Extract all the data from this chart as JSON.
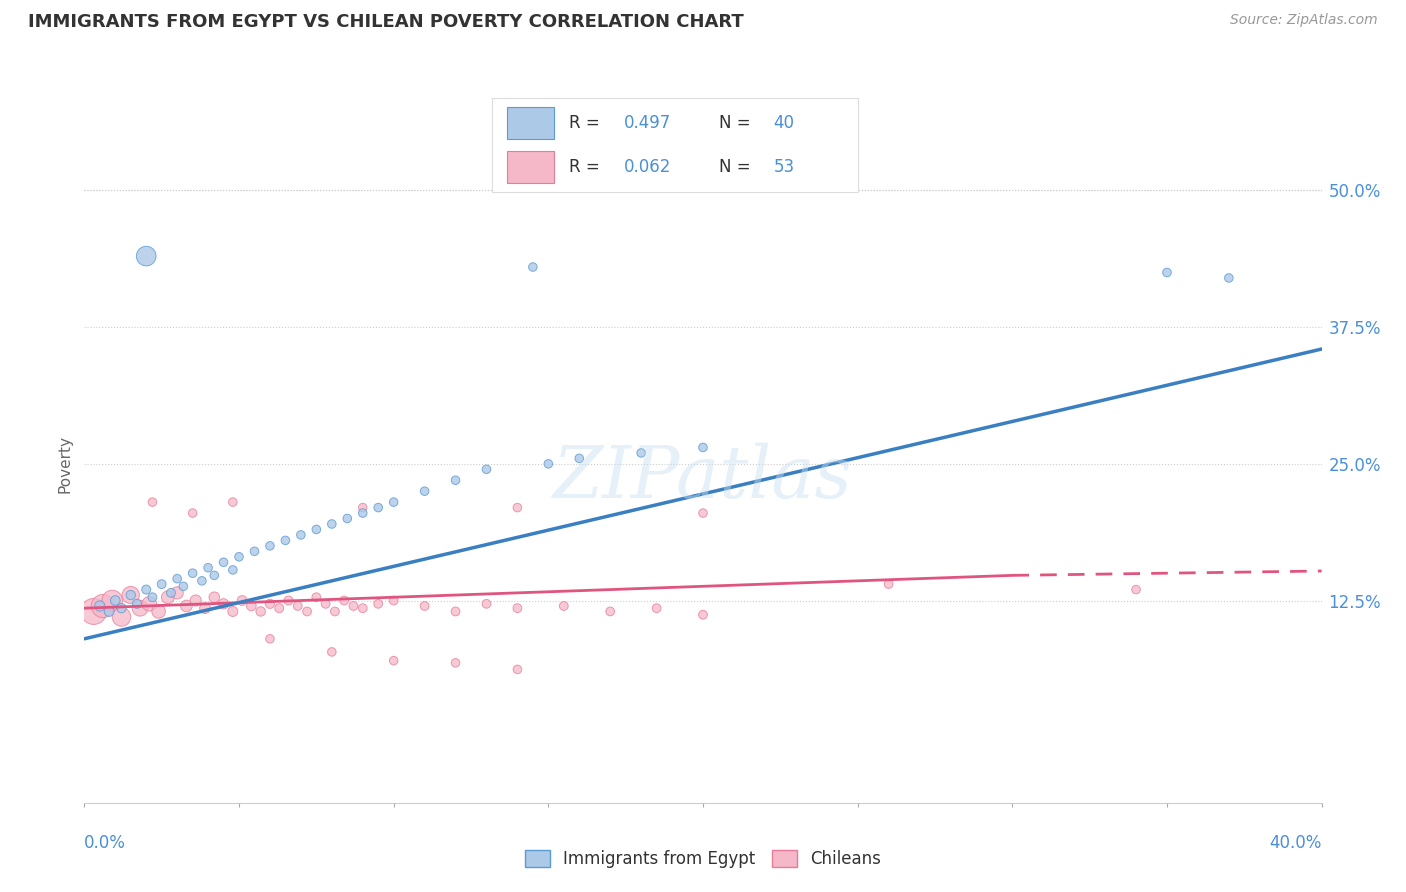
{
  "title": "IMMIGRANTS FROM EGYPT VS CHILEAN POVERTY CORRELATION CHART",
  "source": "Source: ZipAtlas.com",
  "ylabel": "Poverty",
  "ytick_labels": [
    "50.0%",
    "37.5%",
    "25.0%",
    "12.5%"
  ],
  "ytick_vals": [
    0.5,
    0.375,
    0.25,
    0.125
  ],
  "xlim": [
    0.0,
    0.4
  ],
  "ylim": [
    -0.06,
    0.56
  ],
  "blue_color": "#adc9e8",
  "pink_color": "#f4b8c8",
  "blue_edge_color": "#5b9bd5",
  "pink_edge_color": "#e87a9a",
  "blue_line_color": "#3a7fc1",
  "pink_line_color": "#e05580",
  "axis_color": "#4a90d9",
  "title_color": "#333333",
  "source_color": "#999999",
  "watermark": "ZIPatlas",
  "legend_r1": "R = 0.497",
  "legend_n1": "N = 40",
  "legend_r2": "R = 0.062",
  "legend_n2": "N = 53",
  "blue_line": [
    [
      0.0,
      0.09
    ],
    [
      0.4,
      0.355
    ]
  ],
  "pink_line_solid": [
    [
      0.0,
      0.118
    ],
    [
      0.3,
      0.148
    ]
  ],
  "pink_line_dash": [
    [
      0.3,
      0.148
    ],
    [
      0.4,
      0.152
    ]
  ],
  "blue_x": [
    0.005,
    0.008,
    0.01,
    0.012,
    0.015,
    0.017,
    0.02,
    0.022,
    0.025,
    0.028,
    0.03,
    0.032,
    0.035,
    0.038,
    0.04,
    0.042,
    0.045,
    0.048,
    0.05,
    0.055,
    0.06,
    0.065,
    0.07,
    0.075,
    0.08,
    0.085,
    0.09,
    0.095,
    0.1,
    0.11,
    0.12,
    0.13,
    0.15,
    0.16,
    0.18,
    0.2,
    0.35,
    0.37,
    0.145,
    0.02
  ],
  "blue_y": [
    0.12,
    0.115,
    0.125,
    0.118,
    0.13,
    0.122,
    0.135,
    0.128,
    0.14,
    0.132,
    0.145,
    0.138,
    0.15,
    0.143,
    0.155,
    0.148,
    0.16,
    0.153,
    0.165,
    0.17,
    0.175,
    0.18,
    0.185,
    0.19,
    0.195,
    0.2,
    0.205,
    0.21,
    0.215,
    0.225,
    0.235,
    0.245,
    0.25,
    0.255,
    0.26,
    0.265,
    0.425,
    0.42,
    0.43,
    0.44
  ],
  "blue_s": [
    55,
    50,
    48,
    45,
    45,
    42,
    42,
    40,
    40,
    40,
    38,
    38,
    38,
    38,
    38,
    38,
    38,
    38,
    38,
    38,
    38,
    38,
    38,
    38,
    38,
    38,
    38,
    38,
    38,
    38,
    38,
    38,
    38,
    38,
    38,
    38,
    38,
    38,
    38,
    200
  ],
  "pink_x": [
    0.003,
    0.006,
    0.009,
    0.012,
    0.015,
    0.018,
    0.021,
    0.024,
    0.027,
    0.03,
    0.033,
    0.036,
    0.039,
    0.042,
    0.045,
    0.048,
    0.051,
    0.054,
    0.057,
    0.06,
    0.063,
    0.066,
    0.069,
    0.072,
    0.075,
    0.078,
    0.081,
    0.084,
    0.087,
    0.09,
    0.095,
    0.1,
    0.11,
    0.12,
    0.13,
    0.14,
    0.155,
    0.17,
    0.185,
    0.2,
    0.022,
    0.035,
    0.048,
    0.09,
    0.14,
    0.26,
    0.34,
    0.2,
    0.06,
    0.08,
    0.1,
    0.12,
    0.14
  ],
  "pink_y": [
    0.115,
    0.12,
    0.125,
    0.11,
    0.13,
    0.118,
    0.122,
    0.115,
    0.128,
    0.132,
    0.12,
    0.125,
    0.118,
    0.128,
    0.122,
    0.115,
    0.125,
    0.12,
    0.115,
    0.122,
    0.118,
    0.125,
    0.12,
    0.115,
    0.128,
    0.122,
    0.115,
    0.125,
    0.12,
    0.118,
    0.122,
    0.125,
    0.12,
    0.115,
    0.122,
    0.118,
    0.12,
    0.115,
    0.118,
    0.112,
    0.215,
    0.205,
    0.215,
    0.21,
    0.21,
    0.14,
    0.135,
    0.205,
    0.09,
    0.078,
    0.07,
    0.068,
    0.062
  ],
  "pink_s": [
    350,
    280,
    220,
    180,
    155,
    130,
    110,
    95,
    85,
    78,
    70,
    65,
    60,
    58,
    55,
    52,
    50,
    48,
    46,
    44,
    42,
    42,
    40,
    40,
    40,
    40,
    40,
    40,
    40,
    40,
    40,
    40,
    40,
    40,
    40,
    40,
    40,
    40,
    40,
    40,
    38,
    38,
    38,
    38,
    38,
    38,
    38,
    38,
    38,
    38,
    38,
    38,
    38
  ]
}
